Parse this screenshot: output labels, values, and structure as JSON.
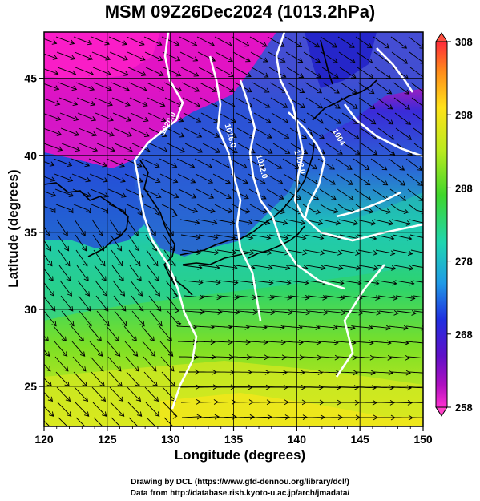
{
  "title": "MSM 09Z26Dec2024 (1013.2hPa)",
  "xlabel": "Longitude (degrees)",
  "ylabel": "Latitude  (degrees)",
  "credits": {
    "line1": "Drawing by DCL (https://www.gfd-dennou.org/library/dcl/)",
    "line2": "Data from http://database.rish.kyoto-u.ac.jp/arch/jmadata/"
  },
  "map": {
    "lon_range": [
      120,
      150
    ],
    "lat_range": [
      22.4,
      48
    ],
    "lon_ticks": [
      "120",
      "125",
      "130",
      "135",
      "140",
      "145",
      "150"
    ],
    "lat_ticks": [
      "25",
      "30",
      "35",
      "40",
      "45"
    ],
    "grid": true,
    "field": "temperature (K) with surface streamlines",
    "contour_labels": [
      {
        "text": "1020.0",
        "lon": 129.5,
        "lat": 41.3,
        "angle": -60
      },
      {
        "text": "1016.0",
        "lon": 134.3,
        "lat": 42.0,
        "angle": 75
      },
      {
        "text": "1012.0",
        "lon": 136.8,
        "lat": 40.0,
        "angle": 75
      },
      {
        "text": "1008.0",
        "lon": 139.8,
        "lat": 40.3,
        "angle": 75
      },
      {
        "text": "1004",
        "lon": 142.8,
        "lat": 41.6,
        "angle": 60
      }
    ]
  },
  "colorbar": {
    "min": 258,
    "max": 308,
    "tick_labels": [
      "308",
      "298",
      "288",
      "278",
      "268",
      "258"
    ],
    "colors": [
      "#ff2a4a",
      "#ff7a1a",
      "#ffd21a",
      "#e9f51f",
      "#9de61f",
      "#3fd62b",
      "#1fd98a",
      "#1fd1d6",
      "#1f8ae6",
      "#1f2fe0",
      "#5a10c8",
      "#a010c0",
      "#e010c8",
      "#ff30d0"
    ],
    "end_colors": {
      "top": "#ff5040",
      "bottom": "#ff40c8"
    }
  }
}
